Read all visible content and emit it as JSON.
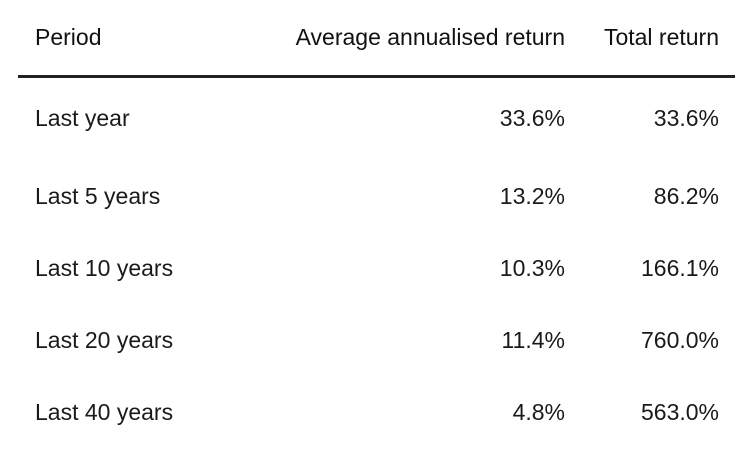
{
  "table": {
    "headers": [
      "Period",
      "Average annualised return",
      "Total return"
    ],
    "rows": [
      {
        "period": "Last year",
        "avg": "33.6%",
        "total": "33.6%"
      },
      {
        "period": "Last 5 years",
        "avg": "13.2%",
        "total": "86.2%"
      },
      {
        "period": "Last 10 years",
        "avg": "10.3%",
        "total": "166.1%"
      },
      {
        "period": "Last 20 years",
        "avg": "11.4%",
        "total": "760.0%"
      },
      {
        "period": "Last 40 years",
        "avg": "4.8%",
        "total": "563.0%"
      }
    ]
  },
  "colors": {
    "text": "#1a1a1a",
    "header_rule": "#222222",
    "background": "#ffffff"
  }
}
